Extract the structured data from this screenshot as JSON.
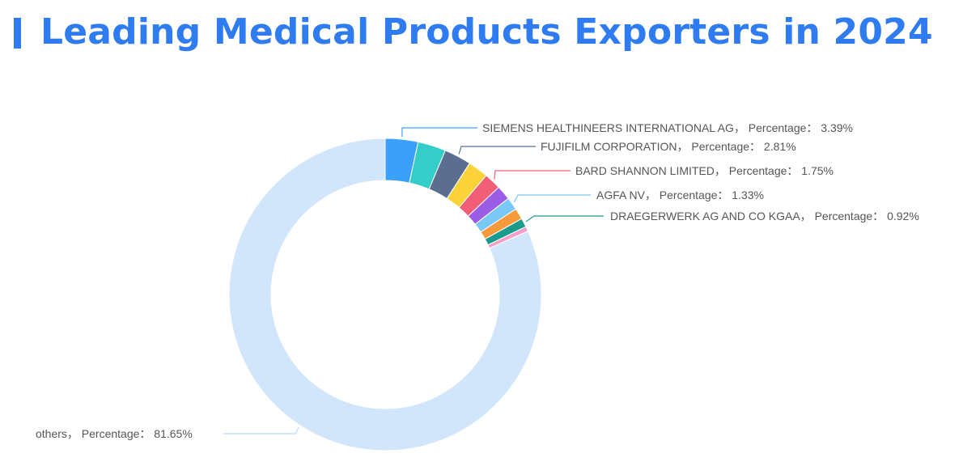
{
  "title": "Leading Medical Products Exporters in 2024",
  "label_sep": "，",
  "value_prefix": "Percentage：",
  "chart_data": {
    "type": "pie",
    "variant": "donut",
    "title": "Leading Medical Products Exporters in 2024",
    "unit": "%",
    "slices": [
      {
        "name": "SIEMENS HEALTHINEERS INTERNATIONAL AG",
        "value": 3.39,
        "color": "#3ba0f9",
        "label_shown": true
      },
      {
        "name": "",
        "value": 2.9,
        "color": "#34cdc8",
        "label_shown": false
      },
      {
        "name": "FUJIFILM CORPORATION",
        "value": 2.81,
        "color": "#5b6e8f",
        "label_shown": true
      },
      {
        "name": "",
        "value": 2.1,
        "color": "#fbd23a",
        "label_shown": false
      },
      {
        "name": "BARD SHANNON LIMITED",
        "value": 1.75,
        "color": "#f25e78",
        "label_shown": true
      },
      {
        "name": "",
        "value": 1.5,
        "color": "#9b5de5",
        "label_shown": false
      },
      {
        "name": "AGFA NV",
        "value": 1.33,
        "color": "#79c8f6",
        "label_shown": true
      },
      {
        "name": "",
        "value": 1.15,
        "color": "#f79a3b",
        "label_shown": false
      },
      {
        "name": "DRAEGERWERK AG AND CO KGAA",
        "value": 0.92,
        "color": "#1a9b8e",
        "label_shown": true
      },
      {
        "name": "",
        "value": 0.5,
        "color": "#f59ec8",
        "label_shown": false
      },
      {
        "name": "others",
        "value": 81.65,
        "color": "#d2e6fb",
        "label_shown": true
      }
    ]
  }
}
